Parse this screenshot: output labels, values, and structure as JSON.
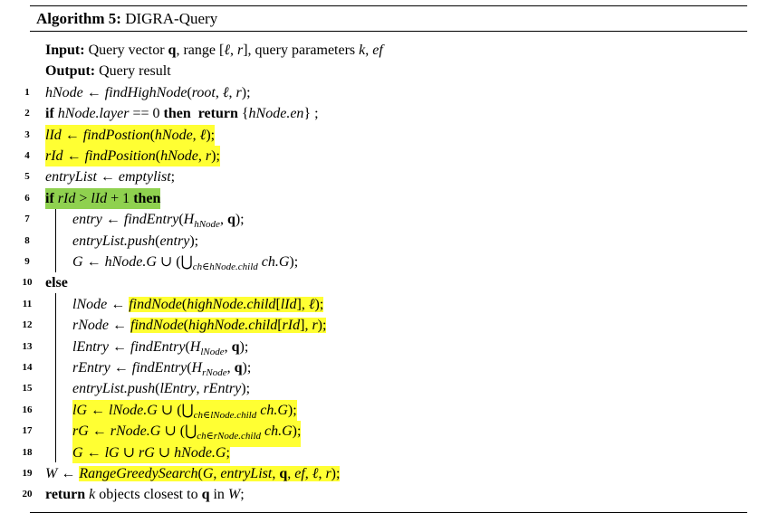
{
  "title": {
    "label": "Algorithm 5:",
    "name": "DIGRA-Query"
  },
  "lines": [
    {
      "num": "",
      "indent": 0,
      "hl": "",
      "html": "<span class='kw'>Input:</span> Query vector <b>q</b>, range [<i>ℓ</i>, <i>r</i>], query parameters <i>k</i>, <i>ef</i>"
    },
    {
      "num": "",
      "indent": 0,
      "hl": "",
      "html": "<span class='kw'>Output:</span> Query result"
    },
    {
      "num": "1",
      "indent": 0,
      "hl": "",
      "html": "<i>hNode</i> ← <i>findHighNode</i>(<i>root</i>, <i>ℓ</i>, <i>r</i>);"
    },
    {
      "num": "2",
      "indent": 0,
      "hl": "",
      "html": "<span class='kw'>if</span> <i>hNode.layer</i> == 0 <span class='kw'>then</span>&nbsp; <span class='kw'>return</span> {<i>hNode.en</i>} ;"
    },
    {
      "num": "3",
      "indent": 0,
      "hl": "y",
      "html": "<i>lId</i> ← <i>findPostion</i>(<i>hNode</i>, <i>ℓ</i>);"
    },
    {
      "num": "4",
      "indent": 0,
      "hl": "y",
      "html": "<i>rId</i> ← <i>findPosition</i>(<i>hNode</i>, <i>r</i>);"
    },
    {
      "num": "5",
      "indent": 0,
      "hl": "",
      "html": "<i>entryList</i> ← <i>emptylist</i>;"
    },
    {
      "num": "6",
      "indent": 0,
      "hl": "g",
      "html": "<span class='kw'>if</span> <i>rId</i> &gt; <i>lId</i> + 1 <span class='kw'>then</span>"
    },
    {
      "num": "7",
      "indent": 1,
      "hl": "",
      "html": "<i>entry</i> ← <i>findEntry</i>(<i>H</i><sub><i>hNode</i></sub>, <b>q</b>);"
    },
    {
      "num": "8",
      "indent": 1,
      "hl": "",
      "html": "<i>entryList.push</i>(<i>entry</i>);"
    },
    {
      "num": "9",
      "indent": 1,
      "hl": "",
      "html": "<i>G</i> ← <i>hNode.G</i> ∪ (⋃<sub><i>ch</i>∈<i>hNode.child</i></sub> <i>ch.G</i>);"
    },
    {
      "num": "10",
      "indent": 0,
      "hl": "",
      "html": "<span class='kw'>else</span>"
    },
    {
      "num": "11",
      "indent": 1,
      "hl": "",
      "html": "<i>lNode</i> ← <span class='hl'><i>findNode</i>(<i>highNode.child</i>[<i>lId</i>], <i>ℓ</i>);</span>"
    },
    {
      "num": "12",
      "indent": 1,
      "hl": "",
      "html": "<i>rNode</i> ← <span class='hl'><i>findNode</i>(<i>highNode.child</i>[<i>rId</i>], <i>r</i>);</span>"
    },
    {
      "num": "13",
      "indent": 1,
      "hl": "",
      "html": "<i>lEntry</i> ← <i>findEntry</i>(<i>H</i><sub><i>lNode</i></sub>, <b>q</b>);"
    },
    {
      "num": "14",
      "indent": 1,
      "hl": "",
      "html": "<i>rEntry</i> ← <i>findEntry</i>(<i>H</i><sub><i>rNode</i></sub>, <b>q</b>);"
    },
    {
      "num": "15",
      "indent": 1,
      "hl": "",
      "html": "<i>entryList.push</i>(<i>lEntry</i>, <i>rEntry</i>);"
    },
    {
      "num": "16",
      "indent": 1,
      "hl": "y",
      "html": "<i>lG</i> ← <i>lNode.G</i> ∪ (⋃<sub><i>ch</i>∈<i>lNode.child</i></sub> <i>ch.G</i>);"
    },
    {
      "num": "17",
      "indent": 1,
      "hl": "y",
      "html": "<i>rG</i> ← <i>rNode.G</i> ∪ (⋃<sub><i>ch</i>∈<i>rNode.child</i></sub> <i>ch.G</i>);"
    },
    {
      "num": "18",
      "indent": 1,
      "hl": "y",
      "html": "<i>G</i> ← <i>lG</i> ∪ <i>rG</i> ∪ <i>hNode.G</i>;"
    },
    {
      "num": "19",
      "indent": 0,
      "hl": "",
      "html": "<i>W</i> ← <span class='hl'><i>RangeGreedySearch</i>(<i>G</i>, <i>entryList</i>, <b>q</b>, <i>ef</i>, <i>ℓ</i>, <i>r</i>);</span>"
    },
    {
      "num": "20",
      "indent": 0,
      "hl": "",
      "html": "<span class='kw'>return</span> <i>k</i> objects closest to <b>q</b> in <i>W</i>;"
    }
  ]
}
